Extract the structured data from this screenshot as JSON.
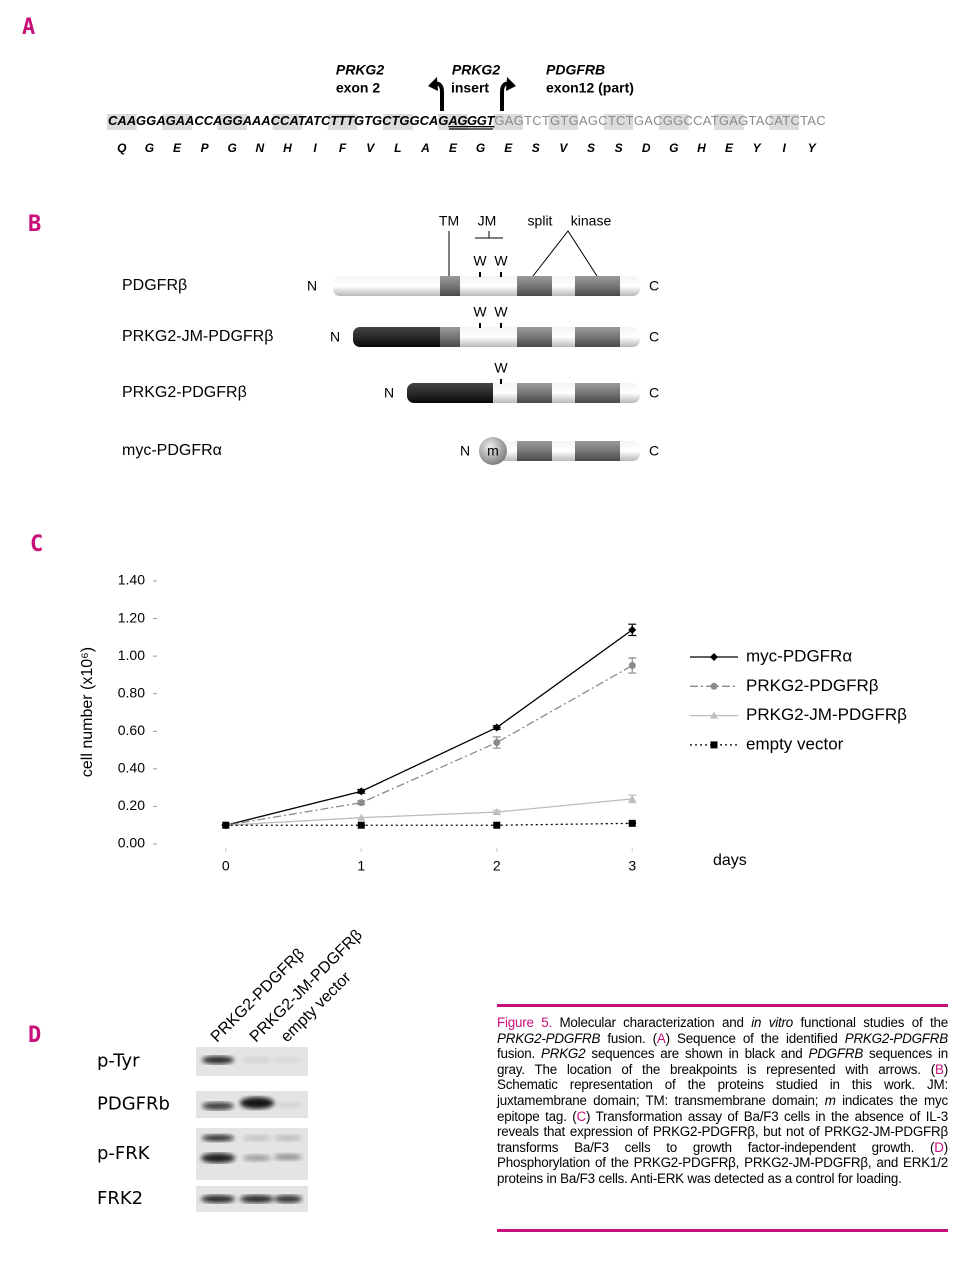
{
  "panel_a": {
    "label": "A",
    "genes": [
      {
        "name": "PRKG2",
        "sub": "exon 2"
      },
      {
        "name": "PRKG2",
        "sub": "insert"
      },
      {
        "name": "PDGFRB",
        "sub": "exon12 (part)"
      }
    ],
    "sequence": {
      "prkg2": "CAAGGAGAACCAGGAAACCATATCTTTGTGCTGGCAG",
      "insert": "AGGGT",
      "pdgfrb": "GAGTCTGTGAGCTCTGACGGCCATGAGTACATCTAC"
    },
    "amino_acids": [
      "Q",
      "G",
      "E",
      "P",
      "G",
      "N",
      "H",
      "I",
      "F",
      "V",
      "L",
      "A",
      "E",
      "G",
      "E",
      "S",
      "V",
      "S",
      "S",
      "D",
      "G",
      "H",
      "E",
      "Y",
      "I",
      "Y"
    ]
  },
  "panel_b": {
    "label": "B",
    "domains": [
      "TM",
      "JM",
      "split",
      "kinase"
    ],
    "rows": [
      {
        "name": "PDGFRβ",
        "n": "N",
        "c": "C",
        "w": [
          "W",
          "W"
        ]
      },
      {
        "name": "PRKG2-JM-PDGFRβ",
        "n": "N",
        "c": "C",
        "w": [
          "W",
          "W"
        ]
      },
      {
        "name": "PRKG2-PDGFRβ",
        "n": "N",
        "c": "C",
        "w": [
          "W"
        ]
      },
      {
        "name": "myc-PDGFRα",
        "n": "N",
        "c": "C",
        "tag": "m"
      }
    ]
  },
  "panel_c": {
    "label": "C"
  },
  "chart_data": {
    "type": "line",
    "ylabel": "cell number (x10⁶)",
    "xlabel": "days",
    "x": [
      0,
      1,
      2,
      3
    ],
    "xlim": [
      -0.5,
      3.5
    ],
    "xticks": [
      0,
      1,
      2,
      3
    ],
    "ylim": [
      0,
      1.4
    ],
    "yticks": [
      {
        "value": 0,
        "label": "0.00"
      },
      {
        "value": 0.2,
        "label": "0.20"
      },
      {
        "value": 0.4,
        "label": "0.40"
      },
      {
        "value": 0.6,
        "label": "0.60"
      },
      {
        "value": 0.8,
        "label": "0.80"
      },
      {
        "value": 1.0,
        "label": "1.00"
      },
      {
        "value": 1.2,
        "label": "1.20"
      },
      {
        "value": 1.4,
        "label": "1.40"
      }
    ],
    "series": [
      {
        "name": "myc-PDGFRα",
        "color": "#000000",
        "dash": "solid",
        "marker": "diamond",
        "values": [
          0.1,
          0.28,
          0.62,
          1.14
        ],
        "errors": [
          0,
          0.01,
          0.01,
          0.03
        ]
      },
      {
        "name": "PRKG2-PDGFRβ",
        "color": "#8a8a8a",
        "dash": "dashdot",
        "marker": "circle",
        "values": [
          0.1,
          0.22,
          0.54,
          0.95
        ],
        "errors": [
          0,
          0.01,
          0.03,
          0.04
        ]
      },
      {
        "name": "PRKG2-JM-PDGFRβ",
        "color": "#bdbdbd",
        "dash": "solid",
        "marker": "triangle",
        "values": [
          0.1,
          0.14,
          0.17,
          0.24
        ],
        "errors": [
          0,
          0,
          0.01,
          0.02
        ]
      },
      {
        "name": "empty vector",
        "color": "#000000",
        "dash": "dotted",
        "marker": "square",
        "values": [
          0.1,
          0.1,
          0.1,
          0.11
        ],
        "errors": [
          0,
          0,
          0,
          0
        ]
      }
    ]
  },
  "panel_d": {
    "label": "D",
    "lanes": [
      "PRKG2-PDGFRβ",
      "PRKG2-JM-PDGFRβ",
      "empty vector"
    ],
    "rows": [
      "p-Tyr",
      "PDGFRb",
      "p-FRK",
      "FRK2"
    ]
  },
  "caption": {
    "label": "Figure 5.",
    "segments": [
      " Molecular characterization and ",
      "in vitro",
      " functional studies of the ",
      "PRKG2-PDGFRB",
      " fusion. (",
      "A",
      ") Sequence of the identified ",
      "PRKG2-PDGFRB",
      " fusion. ",
      "PRKG2",
      " sequences are shown in black and ",
      "PDGFRB",
      " sequences in gray. The location of the breakpoints is represented with arrows. (",
      "B",
      ") Schematic representation of the proteins studied in this work. JM: juxtamembrane domain; TM: transmembrane domain; ",
      "m",
      " indicates the myc epitope tag. (",
      "C",
      ") Transformation assay of Ba/F3 cells in the absence of IL-3 reveals that expression of PRKG2-PDGFRβ, but not of PRKG2-JM-PDGFRβ transforms Ba/F3 cells to growth factor-independent growth. (",
      "D",
      ") Phosphorylation of the PRKG2-PDGFRβ, PRKG2-JM-PDGFRβ, and ERK1/2 proteins in Ba/F3 cells. Anti-ERK was detected as a control for loading."
    ]
  }
}
